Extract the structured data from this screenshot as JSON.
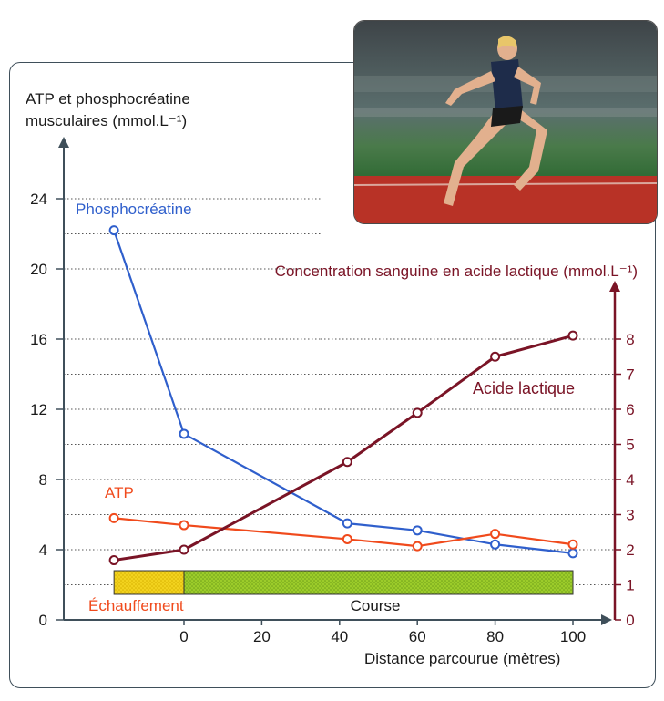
{
  "chart_data": {
    "type": "line",
    "left_axis": {
      "label_lines": [
        "ATP et phosphocréatine",
        "musculaires (mmol.L⁻¹)"
      ],
      "ticks": [
        0,
        4,
        8,
        12,
        16,
        20,
        24
      ],
      "ylim": [
        0,
        24
      ]
    },
    "right_axis": {
      "label": "Concentration sanguine en acide lactique (mmol.L⁻¹)",
      "ticks": [
        0,
        1,
        2,
        3,
        4,
        5,
        6,
        7,
        8
      ],
      "ylim": [
        0,
        9.5
      ]
    },
    "x_axis": {
      "label": "Distance parcourue (mètres)",
      "ticks": [
        0,
        20,
        40,
        60,
        80,
        100
      ]
    },
    "series": [
      {
        "name": "Phosphocréatine",
        "axis": "left",
        "color": "#2f5fcc",
        "points": [
          [
            -18,
            22.2
          ],
          [
            0,
            10.6
          ],
          [
            42,
            5.5
          ],
          [
            60,
            5.1
          ],
          [
            80,
            4.3
          ],
          [
            100,
            3.8
          ]
        ]
      },
      {
        "name": "ATP",
        "axis": "left",
        "color": "#f04a1c",
        "points": [
          [
            -18,
            5.8
          ],
          [
            0,
            5.4
          ],
          [
            42,
            4.6
          ],
          [
            60,
            4.2
          ],
          [
            80,
            4.9
          ],
          [
            100,
            4.3
          ]
        ]
      },
      {
        "name": "Acide lactique",
        "axis": "right",
        "color": "#7a1426",
        "points": [
          [
            -18,
            1.7
          ],
          [
            0,
            2.0
          ],
          [
            42,
            4.5
          ],
          [
            60,
            5.9
          ],
          [
            80,
            7.5
          ],
          [
            100,
            8.1
          ]
        ]
      }
    ],
    "phases": [
      {
        "label": "Échauffement",
        "from": -18,
        "to": 0,
        "color": "#f2d21e",
        "label_color": "#f04a1c"
      },
      {
        "label": "Course",
        "from": 0,
        "to": 100,
        "color": "#9ccc2a",
        "label_color": "#1a1a1a"
      }
    ],
    "grid": true
  }
}
